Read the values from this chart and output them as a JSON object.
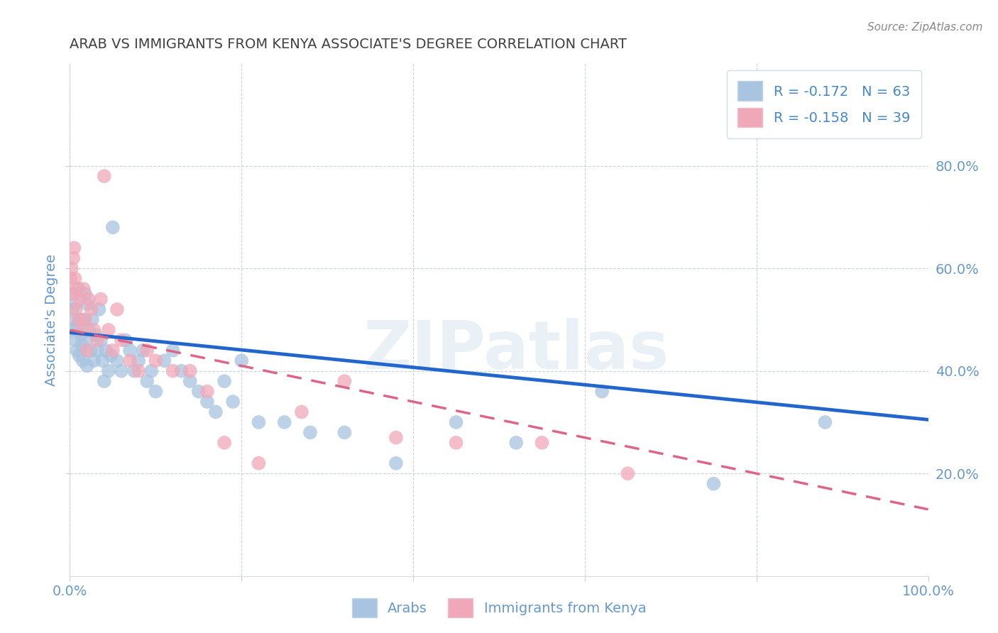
{
  "title": "ARAB VS IMMIGRANTS FROM KENYA ASSOCIATE'S DEGREE CORRELATION CHART",
  "source": "Source: ZipAtlas.com",
  "ylabel": "Associate's Degree",
  "watermark": "ZIPatlas",
  "xlim": [
    0,
    1.0
  ],
  "ylim": [
    0,
    1.0
  ],
  "arab_R": -0.172,
  "arab_N": 63,
  "kenya_R": -0.158,
  "kenya_N": 39,
  "arab_color": "#a8c4e0",
  "kenya_color": "#f0a8b8",
  "arab_line_color": "#2266cc",
  "kenya_line_color": "#dd6688",
  "title_color": "#404040",
  "axis_label_color": "#6699cc",
  "tick_color": "#6699cc",
  "grid_color": "#c8d4e0",
  "background_color": "#ffffff",
  "legend_box_color": "#d8e4f0",
  "legend_text_color": "#4488cc",
  "arab_x": [
    0.002,
    0.003,
    0.004,
    0.005,
    0.006,
    0.007,
    0.008,
    0.009,
    0.01,
    0.011,
    0.012,
    0.013,
    0.014,
    0.015,
    0.016,
    0.018,
    0.019,
    0.02,
    0.021,
    0.022,
    0.024,
    0.026,
    0.028,
    0.03,
    0.032,
    0.034,
    0.036,
    0.038,
    0.04,
    0.042,
    0.045,
    0.048,
    0.05,
    0.055,
    0.06,
    0.065,
    0.07,
    0.075,
    0.08,
    0.085,
    0.09,
    0.095,
    0.1,
    0.11,
    0.12,
    0.13,
    0.14,
    0.15,
    0.16,
    0.17,
    0.18,
    0.19,
    0.2,
    0.22,
    0.25,
    0.28,
    0.32,
    0.38,
    0.45,
    0.52,
    0.62,
    0.75,
    0.88
  ],
  "arab_y": [
    0.48,
    0.52,
    0.55,
    0.5,
    0.46,
    0.53,
    0.44,
    0.49,
    0.56,
    0.43,
    0.5,
    0.47,
    0.45,
    0.42,
    0.5,
    0.55,
    0.46,
    0.41,
    0.53,
    0.48,
    0.44,
    0.5,
    0.42,
    0.47,
    0.44,
    0.52,
    0.46,
    0.42,
    0.38,
    0.44,
    0.4,
    0.43,
    0.68,
    0.42,
    0.4,
    0.46,
    0.44,
    0.4,
    0.42,
    0.44,
    0.38,
    0.4,
    0.36,
    0.42,
    0.44,
    0.4,
    0.38,
    0.36,
    0.34,
    0.32,
    0.38,
    0.34,
    0.42,
    0.3,
    0.3,
    0.28,
    0.28,
    0.22,
    0.3,
    0.26,
    0.36,
    0.18,
    0.3
  ],
  "kenya_x": [
    0.001,
    0.002,
    0.003,
    0.004,
    0.005,
    0.006,
    0.007,
    0.008,
    0.01,
    0.012,
    0.014,
    0.016,
    0.018,
    0.02,
    0.022,
    0.025,
    0.028,
    0.032,
    0.036,
    0.04,
    0.045,
    0.05,
    0.055,
    0.06,
    0.07,
    0.08,
    0.09,
    0.1,
    0.12,
    0.14,
    0.16,
    0.18,
    0.22,
    0.27,
    0.32,
    0.38,
    0.45,
    0.55,
    0.65
  ],
  "kenya_y": [
    0.58,
    0.6,
    0.55,
    0.62,
    0.64,
    0.58,
    0.52,
    0.56,
    0.5,
    0.54,
    0.48,
    0.56,
    0.5,
    0.44,
    0.54,
    0.52,
    0.48,
    0.46,
    0.54,
    0.78,
    0.48,
    0.44,
    0.52,
    0.46,
    0.42,
    0.4,
    0.44,
    0.42,
    0.4,
    0.4,
    0.36,
    0.26,
    0.22,
    0.32,
    0.38,
    0.27,
    0.26,
    0.26,
    0.2
  ],
  "arab_line_x": [
    0.0,
    1.0
  ],
  "arab_line_y_start": 0.475,
  "arab_line_y_end": 0.305,
  "kenya_line_x": [
    0.0,
    1.0
  ],
  "kenya_line_y_start": 0.48,
  "kenya_line_y_end": 0.13
}
